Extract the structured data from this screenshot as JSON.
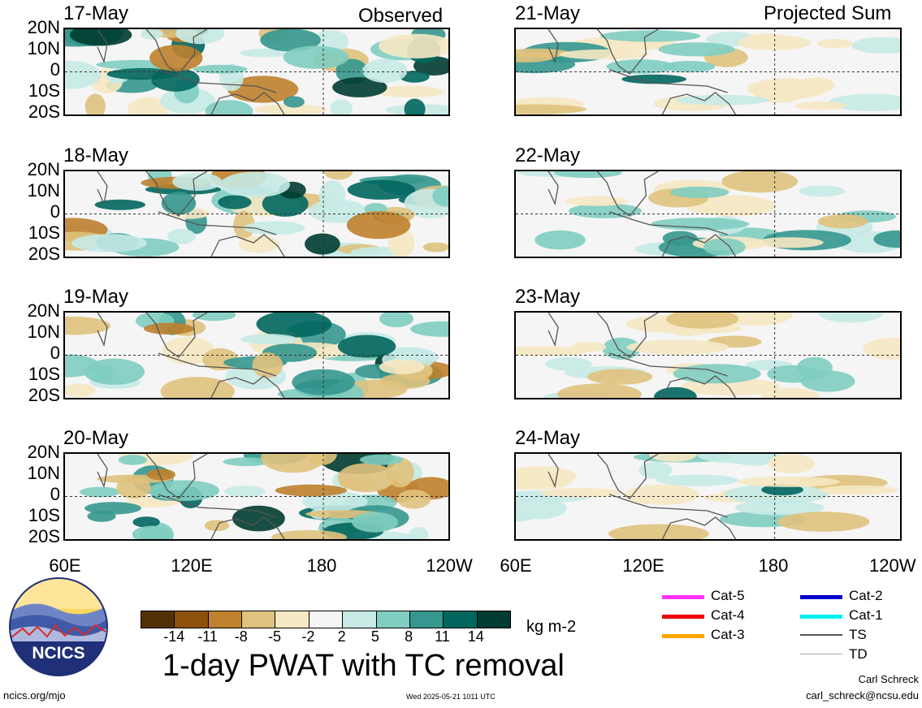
{
  "header": {
    "left_title": "Observed",
    "right_title": "Projected Sum"
  },
  "panels_left": [
    {
      "date": "17-May"
    },
    {
      "date": "18-May"
    },
    {
      "date": "19-May"
    },
    {
      "date": "20-May"
    }
  ],
  "panels_right": [
    {
      "date": "21-May"
    },
    {
      "date": "22-May"
    },
    {
      "date": "23-May"
    },
    {
      "date": "24-May"
    }
  ],
  "lat_labels": [
    "20N",
    "10N",
    "0",
    "10S",
    "20S"
  ],
  "lon_labels": [
    "60E",
    "120E",
    "180",
    "120W"
  ],
  "lon_labels_right": [
    "60E",
    "120E",
    "180",
    "120W"
  ],
  "colorbar": {
    "tick_labels": [
      "-14",
      "-11",
      "-8",
      "-5",
      "-2",
      "2",
      "5",
      "8",
      "11",
      "14"
    ],
    "units": "kg m-2",
    "colors": [
      "#543005",
      "#8c510a",
      "#bf812d",
      "#dfc27d",
      "#f6e8c3",
      "#f5f5f5",
      "#c7eae5",
      "#80cdc1",
      "#35978f",
      "#01665e",
      "#003c30"
    ]
  },
  "title": "1-day PWAT with TC removal",
  "tc_legend": [
    {
      "label": "Cat-5",
      "color": "#ff33ff"
    },
    {
      "label": "Cat-4",
      "color": "#ee0000"
    },
    {
      "label": "Cat-3",
      "color": "#ffa500"
    },
    {
      "label": "Cat-2",
      "color": "#0000cc"
    },
    {
      "label": "Cat-1",
      "color": "#00eeee"
    },
    {
      "label": "TS",
      "color": "#555555"
    },
    {
      "label": "TD",
      "color": "#aaaaaa"
    }
  ],
  "logo_text": "NCICS",
  "footer": {
    "url": "ncics.org/mjo",
    "timestamp": "Wed 2025-05-21 1011 UTC",
    "author": "Carl Schreck",
    "email": "carl_schreck@ncsu.edu"
  }
}
